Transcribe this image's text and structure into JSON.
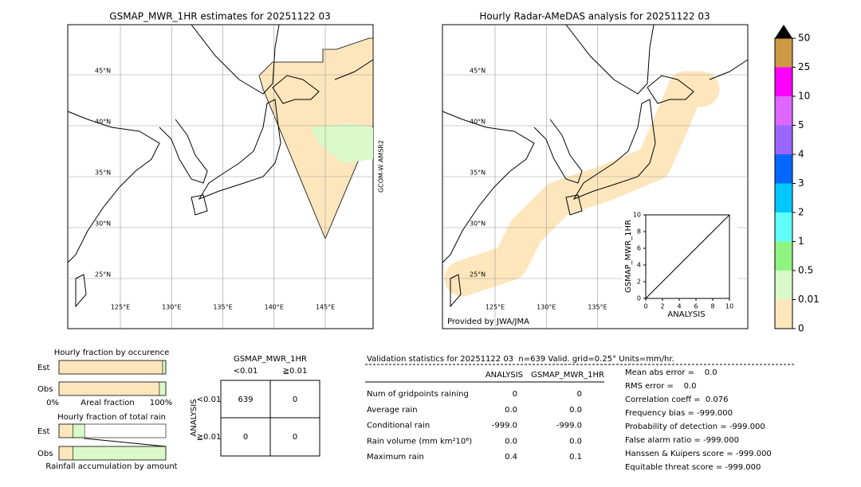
{
  "maps": [
    {
      "title": "GSMAP_MWR_1HR estimates for 20251122 03",
      "side_label": "GCOM-W AMSR2",
      "lat_ticks": [
        {
          "value": 45,
          "label": "45°N"
        },
        {
          "value": 40,
          "label": "40°N"
        },
        {
          "value": 35,
          "label": "35°N"
        },
        {
          "value": 30,
          "label": "30°N"
        },
        {
          "value": 25,
          "label": "25°N"
        }
      ],
      "lon_ticks": [
        {
          "value": 125,
          "label": "125°E"
        },
        {
          "value": 130,
          "label": "130°E"
        },
        {
          "value": 135,
          "label": "135°E"
        },
        {
          "value": 140,
          "label": "140°E"
        },
        {
          "value": 145,
          "label": "145°E"
        }
      ]
    },
    {
      "title": "Hourly Radar-AMeDAS analysis for 20251122 03",
      "credit": "Provided by JWA/JMA",
      "lat_ticks": [
        {
          "value": 45,
          "label": "45°N"
        },
        {
          "value": 40,
          "label": "40°N"
        },
        {
          "value": 35,
          "label": "35°N"
        },
        {
          "value": 30,
          "label": "30°N"
        },
        {
          "value": 25,
          "label": "25°N"
        }
      ],
      "lon_ticks": [
        {
          "value": 125,
          "label": "125°E"
        },
        {
          "value": 130,
          "label": "130°E"
        },
        {
          "value": 135,
          "label": "135°E"
        }
      ]
    }
  ],
  "colorbar": {
    "ticks": [
      0,
      0.01,
      0.5,
      1,
      2,
      3,
      4,
      5,
      10,
      25,
      50
    ],
    "colors": [
      "#fee6bc",
      "#d9f9c9",
      "#90f580",
      "#60fffa",
      "#00c8ff",
      "#0068ff",
      "#9966ff",
      "#dd66ff",
      "#ff00ff",
      "#cc9944"
    ]
  },
  "scatter": {
    "xlabel": "ANALYSIS",
    "ylabel": "GSMAP_MWR_1HR",
    "xlim": [
      0,
      10
    ],
    "ylim": [
      0,
      10
    ],
    "xticks": [
      0,
      2,
      4,
      6,
      8,
      10
    ],
    "yticks": [
      0,
      2,
      4,
      6,
      8,
      10
    ]
  },
  "fractions": {
    "occurrence_title": "Hourly fraction by occurence",
    "amount_title": "Hourly fraction of total rain",
    "rows": [
      "Est",
      "Obs"
    ],
    "axis_left": "0%",
    "axis_mid": "Areal fraction",
    "axis_right": "100%",
    "footer": "Rainfall accumulation by amount",
    "occurrence": [
      [
        97,
        3
      ],
      [
        94,
        6
      ]
    ],
    "amount": [
      [
        13,
        11
      ],
      [
        13,
        87
      ]
    ]
  },
  "contingency": {
    "title": "GSMAP_MWR_1HR",
    "col_labels": [
      "<0.01",
      "≧0.01"
    ],
    "row_title": "ANALYSIS",
    "row_labels": [
      "<0.01",
      "≧0.01"
    ],
    "cells": [
      [
        639,
        0
      ],
      [
        0,
        0
      ]
    ]
  },
  "stats": {
    "title": "Validation statistics for 20251122 03  n=639 Valid. grid=0.25° Units=mm/hr.",
    "headers": [
      "ANALYSIS",
      "GSMAP_MWR_1HR"
    ],
    "rows": [
      [
        "Num of gridpoints raining",
        "0",
        "0"
      ],
      [
        "Average rain",
        "0.0",
        "0.0"
      ],
      [
        "Conditional rain",
        "-999.0",
        "-999.0"
      ],
      [
        "Rain volume (mm km²10⁶)",
        "0.0",
        "0.0"
      ],
      [
        "Maximum rain",
        "0.4",
        "0.1"
      ]
    ],
    "scores": [
      "Mean abs error =    0.0",
      "RMS error =    0.0",
      "Correlation coeff =  0.076",
      "Frequency bias = -999.000",
      "Probability of detection = -999.000",
      "False alarm ratio = -999.000",
      "Hanssen & Kuipers score = -999.000",
      "Equitable threat score = -999.000"
    ]
  }
}
